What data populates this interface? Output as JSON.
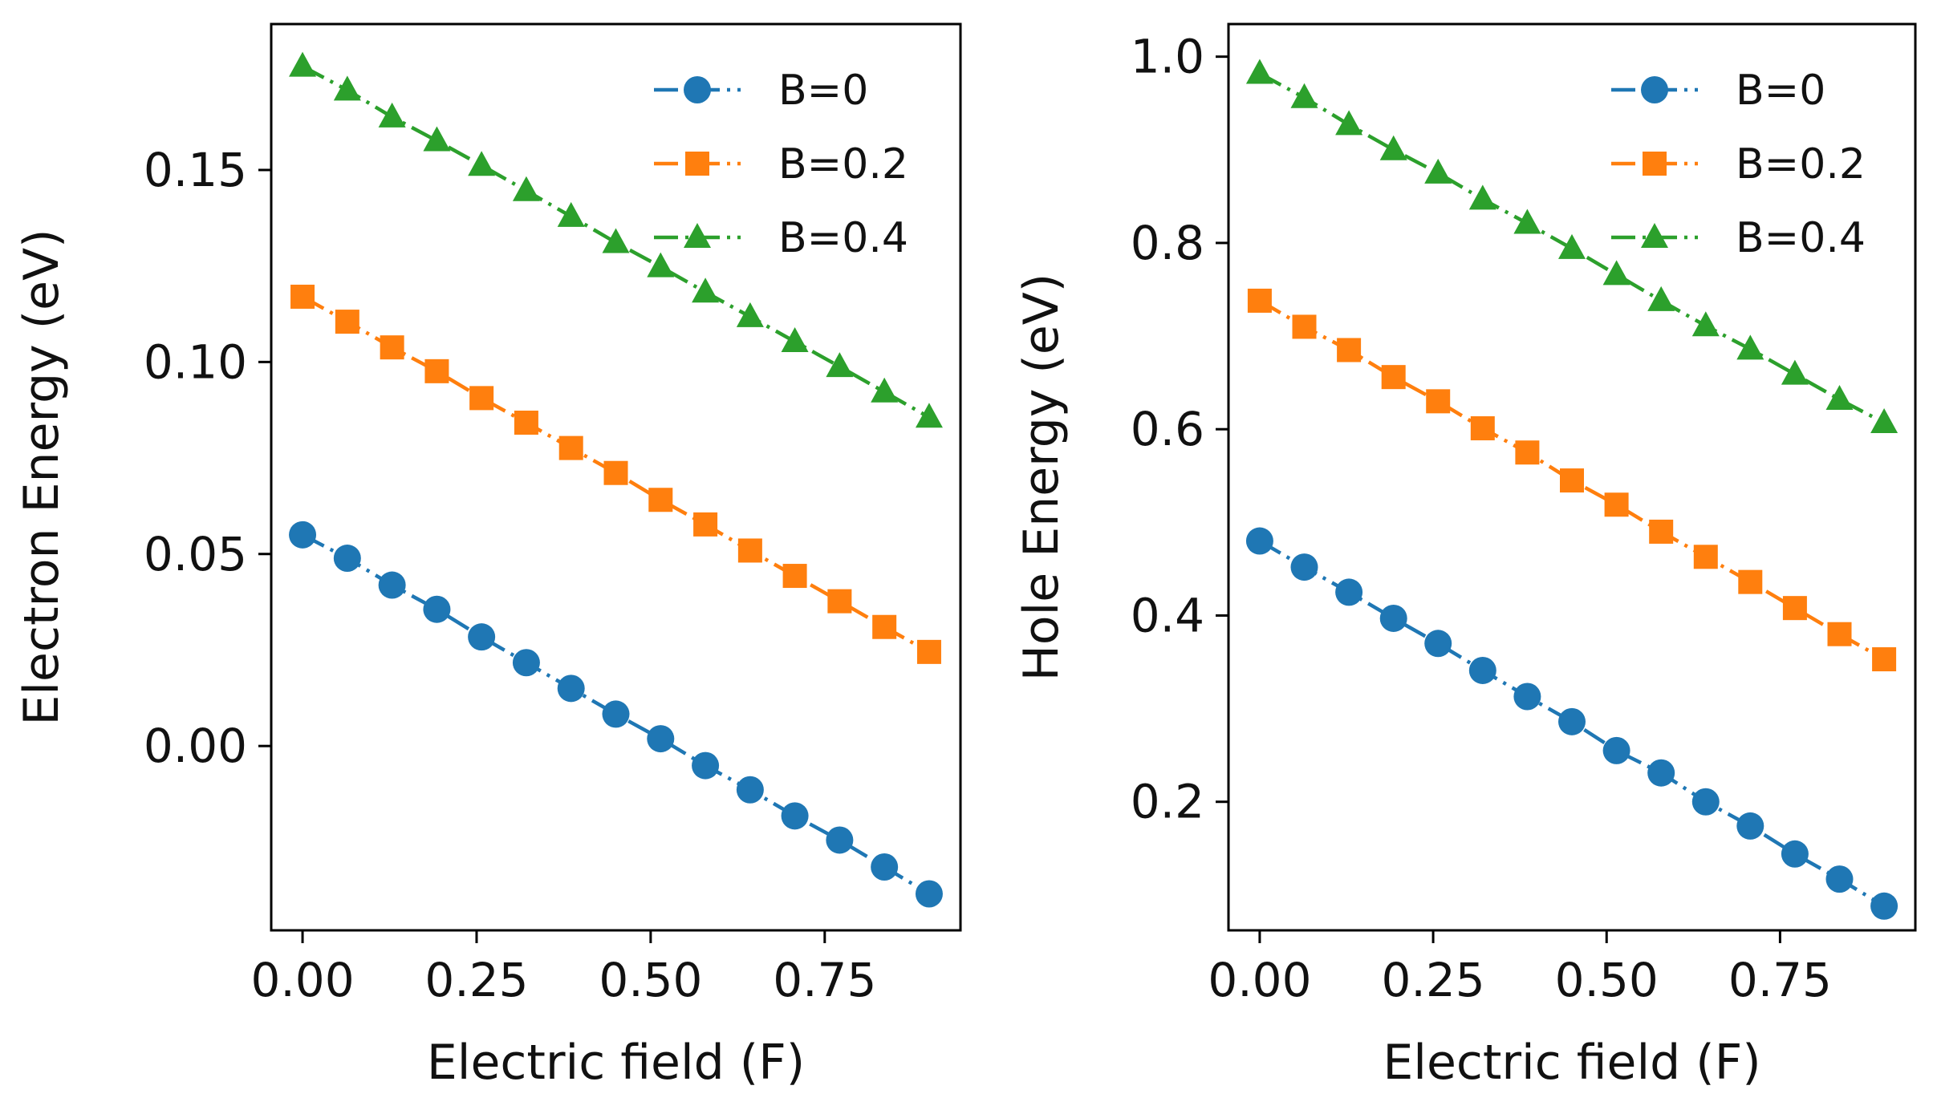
{
  "chart_data": [
    {
      "type": "line",
      "title": "",
      "xlabel": "Electric field (F)",
      "ylabel": "Electron Energy (eV)",
      "xlim": [
        -0.045,
        0.945
      ],
      "ylim": [
        -0.048,
        0.188
      ],
      "xticks": [
        0.0,
        0.25,
        0.5,
        0.75
      ],
      "xtick_labels": [
        "0.00",
        "0.25",
        "0.50",
        "0.75"
      ],
      "yticks": [
        0.0,
        0.05,
        0.1,
        0.15
      ],
      "ytick_labels": [
        "0.00",
        "0.05",
        "0.10",
        "0.15"
      ],
      "grid": false,
      "legend_position": "top-right",
      "x": [
        0.0,
        0.0643,
        0.1286,
        0.1929,
        0.2571,
        0.3214,
        0.3857,
        0.45,
        0.5143,
        0.5786,
        0.6429,
        0.7071,
        0.7714,
        0.8357,
        0.9
      ],
      "series": [
        {
          "name": "B=0",
          "color": "#1f77b4",
          "marker": "circle",
          "values": [
            0.055,
            0.0489,
            0.0419,
            0.0356,
            0.0284,
            0.0217,
            0.015,
            0.0083,
            0.0019,
            -0.0051,
            -0.0114,
            -0.0182,
            -0.0245,
            -0.0315,
            -0.0385
          ]
        },
        {
          "name": "B=0.2",
          "color": "#ff7f0e",
          "marker": "square",
          "values": [
            0.117,
            0.1105,
            0.1038,
            0.0976,
            0.0906,
            0.0842,
            0.0776,
            0.0711,
            0.0641,
            0.0577,
            0.0509,
            0.0443,
            0.0377,
            0.031,
            0.0245
          ]
        },
        {
          "name": "B=0.4",
          "color": "#2ca02c",
          "marker": "triangle",
          "values": [
            0.177,
            0.1708,
            0.1638,
            0.1576,
            0.1512,
            0.1446,
            0.1379,
            0.1311,
            0.1248,
            0.1182,
            0.1118,
            0.1053,
            0.0988,
            0.0922,
            0.0856
          ]
        }
      ]
    },
    {
      "type": "line",
      "title": "",
      "xlabel": "Electric field (F)",
      "ylabel": "Hole Energy (eV)",
      "xlim": [
        -0.045,
        0.945
      ],
      "ylim": [
        0.062,
        1.035
      ],
      "xticks": [
        0.0,
        0.25,
        0.5,
        0.75
      ],
      "xtick_labels": [
        "0.00",
        "0.25",
        "0.50",
        "0.75"
      ],
      "yticks": [
        0.2,
        0.4,
        0.6,
        0.8,
        1.0
      ],
      "ytick_labels": [
        "0.2",
        "0.4",
        "0.6",
        "0.8",
        "1.0"
      ],
      "grid": false,
      "legend_position": "top-right",
      "x": [
        0.0,
        0.0643,
        0.1286,
        0.1929,
        0.2571,
        0.3214,
        0.3857,
        0.45,
        0.5143,
        0.5786,
        0.6429,
        0.7071,
        0.7714,
        0.8357,
        0.9
      ],
      "series": [
        {
          "name": "B=0",
          "color": "#1f77b4",
          "marker": "circle",
          "values": [
            0.48,
            0.452,
            0.425,
            0.397,
            0.37,
            0.341,
            0.313,
            0.286,
            0.255,
            0.231,
            0.2,
            0.174,
            0.144,
            0.117,
            0.088
          ]
        },
        {
          "name": "B=0.2",
          "color": "#ff7f0e",
          "marker": "square",
          "values": [
            0.738,
            0.71,
            0.685,
            0.656,
            0.63,
            0.601,
            0.575,
            0.545,
            0.519,
            0.49,
            0.463,
            0.436,
            0.408,
            0.38,
            0.353
          ]
        },
        {
          "name": "B=0.4",
          "color": "#2ca02c",
          "marker": "triangle",
          "values": [
            0.982,
            0.956,
            0.927,
            0.9,
            0.875,
            0.847,
            0.821,
            0.794,
            0.766,
            0.738,
            0.711,
            0.686,
            0.659,
            0.632,
            0.607
          ]
        }
      ]
    }
  ]
}
